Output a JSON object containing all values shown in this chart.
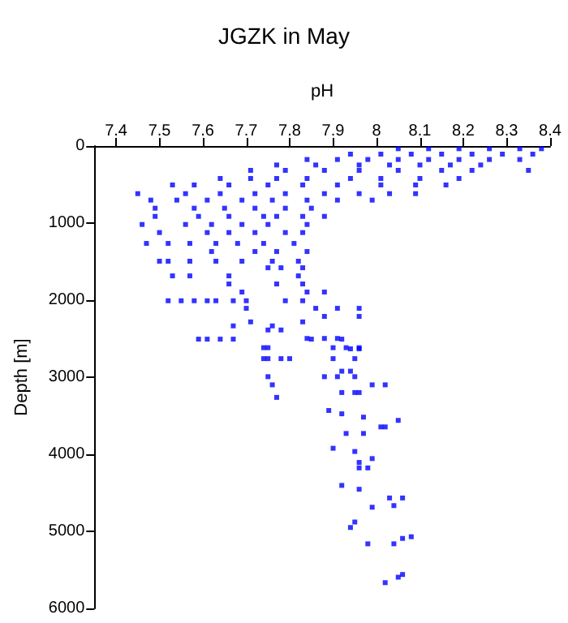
{
  "chart_data": {
    "type": "scatter",
    "title": "JGZK in May",
    "xlabel": "pH",
    "ylabel": "Depth [m]",
    "xlim": [
      7.35,
      8.4
    ],
    "xticks": [
      7.4,
      7.5,
      7.6,
      7.7,
      7.8,
      7.9,
      8,
      8.1,
      8.2,
      8.3,
      8.4
    ],
    "ylim": [
      6000,
      0
    ],
    "yticks": [
      0,
      1000,
      2000,
      3000,
      4000,
      5000,
      6000
    ],
    "grid": false,
    "marker": "square",
    "series": [
      {
        "color": "#0000ff",
        "x": [
          8.05,
          8.12,
          8.19,
          8.26,
          8.33,
          8.38,
          7.94,
          8.01,
          8.08,
          8.15,
          8.22,
          8.29,
          8.36,
          7.84,
          7.91,
          7.98,
          8.05,
          8.12,
          8.19,
          8.26,
          8.33,
          7.77,
          7.86,
          7.96,
          8.03,
          8.1,
          8.17,
          8.24,
          7.71,
          7.79,
          7.88,
          7.96,
          8.05,
          8.15,
          8.22,
          8.35,
          7.64,
          7.71,
          7.77,
          7.84,
          7.94,
          8.01,
          8.1,
          8.19,
          7.53,
          7.58,
          7.66,
          7.75,
          7.83,
          7.91,
          8.01,
          8.09,
          8.16,
          7.45,
          7.56,
          7.64,
          7.72,
          7.79,
          7.88,
          7.96,
          8.03,
          8.09,
          7.48,
          7.54,
          7.61,
          7.69,
          7.76,
          7.84,
          7.91,
          7.99,
          7.49,
          7.58,
          7.65,
          7.72,
          7.79,
          7.85,
          7.49,
          7.59,
          7.66,
          7.74,
          7.77,
          7.83,
          7.88,
          7.46,
          7.56,
          7.62,
          7.69,
          7.75,
          7.84,
          7.5,
          7.61,
          7.66,
          7.72,
          7.79,
          7.83,
          7.47,
          7.52,
          7.57,
          7.63,
          7.68,
          7.74,
          7.81,
          7.62,
          7.72,
          7.77,
          7.84,
          7.5,
          7.52,
          7.57,
          7.63,
          7.69,
          7.76,
          7.82,
          7.75,
          7.78,
          7.83,
          7.53,
          7.57,
          7.66,
          7.82,
          7.66,
          7.77,
          7.83,
          7.69,
          7.84,
          7.88,
          7.52,
          7.55,
          7.58,
          7.61,
          7.63,
          7.67,
          7.7,
          7.79,
          7.83,
          7.7,
          7.86,
          7.91,
          7.96,
          7.88,
          7.96,
          7.71,
          7.83,
          7.75,
          7.78,
          7.59,
          7.61,
          7.64,
          7.67,
          7.85,
          7.92,
          7.94,
          7.96,
          7.84,
          7.88,
          7.91,
          7.67,
          7.76,
          7.74,
          7.75,
          7.9,
          7.93,
          7.96,
          7.74,
          7.75,
          7.78,
          7.8,
          7.9,
          7.95,
          7.75,
          7.88,
          7.91,
          7.95,
          7.92,
          7.94,
          7.76,
          7.99,
          8.02,
          7.92,
          7.95,
          7.96,
          7.77,
          7.89,
          7.92,
          7.97,
          8.05,
          8.01,
          8.02,
          7.93,
          7.97,
          7.9,
          7.95,
          7.99,
          7.96,
          7.96,
          7.98,
          7.92,
          7.96,
          8.03,
          8.06,
          8.04,
          7.99,
          7.95,
          7.94,
          8.08,
          8.06,
          7.98,
          8.04,
          8.06,
          8.05,
          8.02
        ],
        "values": [
          35,
          35,
          35,
          35,
          35,
          35,
          105,
          105,
          105,
          105,
          105,
          105,
          105,
          175,
          175,
          175,
          175,
          175,
          175,
          175,
          175,
          246,
          246,
          246,
          246,
          246,
          246,
          246,
          316,
          316,
          316,
          316,
          316,
          316,
          316,
          316,
          421,
          421,
          421,
          421,
          421,
          421,
          421,
          421,
          505,
          505,
          505,
          505,
          505,
          505,
          505,
          505,
          505,
          618,
          618,
          618,
          618,
          618,
          618,
          618,
          618,
          618,
          702,
          702,
          702,
          702,
          702,
          702,
          702,
          702,
          807,
          807,
          807,
          807,
          807,
          807,
          913,
          913,
          913,
          913,
          913,
          913,
          913,
          1018,
          1018,
          1018,
          1018,
          1018,
          1018,
          1123,
          1123,
          1123,
          1123,
          1123,
          1123,
          1264,
          1264,
          1264,
          1264,
          1264,
          1264,
          1264,
          1369,
          1369,
          1369,
          1369,
          1495,
          1495,
          1495,
          1495,
          1495,
          1495,
          1495,
          1580,
          1580,
          1580,
          1685,
          1685,
          1685,
          1685,
          1790,
          1790,
          1790,
          1895,
          1895,
          1895,
          2008,
          2008,
          2008,
          2008,
          2008,
          2008,
          2008,
          2008,
          2008,
          2106,
          2106,
          2106,
          2106,
          2211,
          2211,
          2282,
          2282,
          2387,
          2387,
          2506,
          2506,
          2506,
          2506,
          2506,
          2506,
          2632,
          2632,
          2497,
          2497,
          2497,
          2334,
          2334,
          2617,
          2617,
          2617,
          2617,
          2617,
          2759,
          2759,
          2759,
          2759,
          2759,
          2759,
          2993,
          2993,
          2993,
          2993,
          2922,
          2922,
          3099,
          3099,
          3099,
          3199,
          3199,
          3199,
          3262,
          3432,
          3475,
          3518,
          3560,
          3645,
          3645,
          3730,
          3730,
          3922,
          3964,
          4056,
          4106,
          4177,
          4177,
          4404,
          4454,
          4567,
          4567,
          4666,
          4687,
          4879,
          4950,
          5070,
          5092,
          5162,
          5162,
          5560,
          5595,
          5666
        ]
      }
    ]
  }
}
